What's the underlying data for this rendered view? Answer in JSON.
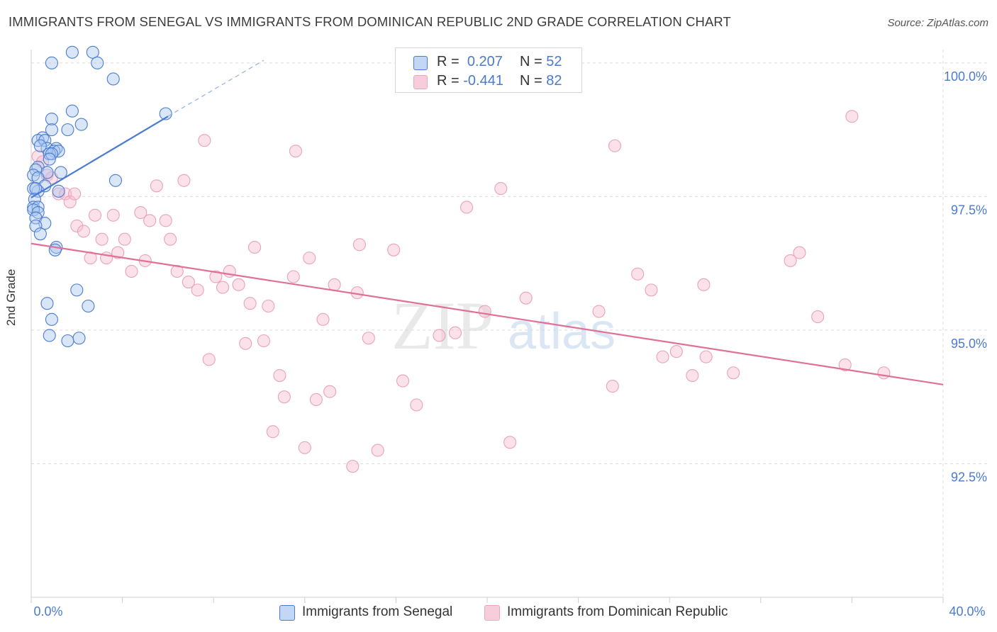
{
  "title": "IMMIGRANTS FROM SENEGAL VS IMMIGRANTS FROM DOMINICAN REPUBLIC 2ND GRADE CORRELATION CHART",
  "source": "Source: ZipAtlas.com",
  "watermark": {
    "zip": "ZIP",
    "atlas": "atlas"
  },
  "colors": {
    "blue": "#4a7bd0",
    "blue_fill": "#aac8f0",
    "pink": "#e07098",
    "pink_fill": "#f6bdd0",
    "axis_text": "#4a7bd0",
    "grid": "#dcdcdc"
  },
  "legend": {
    "rows": [
      {
        "r_label": "R =",
        "r_value": "0.207",
        "n_label": "N =",
        "n_value": "52"
      },
      {
        "r_label": "R =",
        "r_value": "-0.441",
        "n_label": "N =",
        "n_value": "82"
      }
    ]
  },
  "bottom_legend": {
    "senegal": "Immigrants from Senegal",
    "dominican": "Immigrants from Dominican Republic"
  },
  "chart_data": {
    "type": "scatter",
    "title": "IMMIGRANTS FROM SENEGAL VS IMMIGRANTS FROM DOMINICAN REPUBLIC 2ND GRADE CORRELATION CHART",
    "xlabel": "",
    "ylabel": "2nd Grade",
    "xlim": [
      0,
      40
    ],
    "ylim": [
      90.0,
      100.25
    ],
    "x_tick_labels": [
      "0.0%",
      "40.0%"
    ],
    "y_ticks": [
      92.5,
      95.0,
      97.5,
      100.0
    ],
    "y_tick_labels": [
      "92.5%",
      "95.0%",
      "97.5%",
      "100.0%"
    ],
    "grid": true,
    "legend_position": "top-center",
    "series": [
      {
        "name": "Immigrants from Senegal",
        "color": "#4a7bd0",
        "points": [
          [
            0.9,
            100.0
          ],
          [
            1.8,
            100.2
          ],
          [
            2.7,
            100.2
          ],
          [
            2.9,
            100.0
          ],
          [
            3.6,
            99.7
          ],
          [
            1.8,
            99.1
          ],
          [
            0.9,
            98.95
          ],
          [
            2.2,
            98.85
          ],
          [
            5.9,
            99.05
          ],
          [
            1.6,
            98.75
          ],
          [
            0.9,
            98.75
          ],
          [
            0.5,
            98.6
          ],
          [
            0.3,
            98.55
          ],
          [
            0.6,
            98.55
          ],
          [
            0.7,
            98.4
          ],
          [
            0.4,
            98.45
          ],
          [
            1.1,
            98.4
          ],
          [
            1.0,
            98.35
          ],
          [
            1.2,
            98.35
          ],
          [
            0.8,
            98.3
          ],
          [
            0.9,
            98.3
          ],
          [
            0.8,
            98.2
          ],
          [
            0.3,
            98.05
          ],
          [
            0.2,
            98.0
          ],
          [
            1.3,
            97.95
          ],
          [
            0.7,
            97.95
          ],
          [
            0.1,
            97.9
          ],
          [
            0.3,
            97.85
          ],
          [
            3.7,
            97.8
          ],
          [
            0.6,
            97.7
          ],
          [
            0.3,
            97.6
          ],
          [
            0.1,
            97.65
          ],
          [
            0.2,
            97.65
          ],
          [
            1.2,
            97.6
          ],
          [
            0.15,
            97.45
          ],
          [
            0.1,
            97.3
          ],
          [
            0.3,
            97.3
          ],
          [
            0.1,
            97.25
          ],
          [
            0.3,
            97.2
          ],
          [
            0.2,
            97.1
          ],
          [
            0.6,
            97.0
          ],
          [
            0.2,
            96.95
          ],
          [
            0.4,
            96.8
          ],
          [
            1.1,
            96.55
          ],
          [
            1.05,
            96.5
          ],
          [
            2.0,
            95.75
          ],
          [
            0.7,
            95.5
          ],
          [
            2.5,
            95.45
          ],
          [
            0.9,
            95.2
          ],
          [
            0.8,
            94.9
          ],
          [
            2.1,
            94.85
          ],
          [
            1.6,
            94.8
          ]
        ],
        "trend": {
          "x": [
            0.0,
            6.0
          ],
          "y": [
            97.48,
            99.0
          ],
          "extension_x": [
            6.0,
            10.2
          ],
          "extension_y": [
            99.0,
            100.05
          ]
        }
      },
      {
        "name": "Immigrants from Dominican Republic",
        "color": "#e07098",
        "points": [
          [
            0.3,
            98.25
          ],
          [
            0.5,
            98.15
          ],
          [
            0.7,
            97.9
          ],
          [
            0.9,
            97.85
          ],
          [
            1.2,
            97.55
          ],
          [
            1.5,
            97.55
          ],
          [
            1.7,
            97.4
          ],
          [
            1.9,
            97.55
          ],
          [
            2.0,
            96.95
          ],
          [
            2.3,
            96.85
          ],
          [
            2.6,
            96.35
          ],
          [
            2.8,
            97.15
          ],
          [
            3.1,
            96.7
          ],
          [
            3.3,
            96.35
          ],
          [
            3.6,
            97.15
          ],
          [
            3.8,
            96.45
          ],
          [
            4.1,
            96.7
          ],
          [
            4.4,
            96.1
          ],
          [
            4.8,
            97.2
          ],
          [
            5.0,
            96.3
          ],
          [
            5.2,
            97.05
          ],
          [
            5.5,
            97.7
          ],
          [
            5.9,
            97.05
          ],
          [
            6.1,
            96.7
          ],
          [
            6.4,
            96.1
          ],
          [
            6.7,
            97.8
          ],
          [
            6.9,
            95.9
          ],
          [
            7.3,
            95.75
          ],
          [
            7.6,
            98.55
          ],
          [
            7.8,
            94.45
          ],
          [
            8.1,
            96.0
          ],
          [
            8.4,
            95.8
          ],
          [
            8.7,
            96.1
          ],
          [
            9.1,
            95.85
          ],
          [
            9.4,
            94.75
          ],
          [
            9.6,
            95.5
          ],
          [
            9.8,
            96.55
          ],
          [
            10.2,
            94.8
          ],
          [
            10.4,
            95.45
          ],
          [
            10.6,
            93.1
          ],
          [
            10.9,
            94.15
          ],
          [
            11.1,
            93.75
          ],
          [
            11.5,
            96.0
          ],
          [
            11.6,
            98.35
          ],
          [
            12.0,
            92.8
          ],
          [
            12.2,
            96.35
          ],
          [
            12.5,
            93.7
          ],
          [
            12.8,
            95.2
          ],
          [
            13.1,
            93.85
          ],
          [
            13.3,
            95.85
          ],
          [
            14.1,
            92.45
          ],
          [
            14.3,
            95.7
          ],
          [
            14.4,
            96.6
          ],
          [
            14.8,
            94.85
          ],
          [
            15.2,
            92.75
          ],
          [
            15.9,
            96.5
          ],
          [
            16.3,
            94.05
          ],
          [
            16.9,
            93.6
          ],
          [
            17.9,
            94.9
          ],
          [
            18.6,
            94.95
          ],
          [
            19.1,
            97.3
          ],
          [
            19.9,
            95.35
          ],
          [
            20.6,
            97.65
          ],
          [
            21.0,
            92.9
          ],
          [
            21.7,
            95.6
          ],
          [
            24.9,
            95.35
          ],
          [
            25.6,
            98.45
          ],
          [
            25.5,
            93.95
          ],
          [
            26.6,
            96.05
          ],
          [
            27.2,
            95.75
          ],
          [
            27.7,
            94.5
          ],
          [
            28.3,
            94.6
          ],
          [
            29.0,
            94.15
          ],
          [
            29.5,
            95.85
          ],
          [
            29.6,
            94.5
          ],
          [
            30.8,
            94.2
          ],
          [
            33.3,
            96.3
          ],
          [
            33.7,
            96.45
          ],
          [
            34.5,
            95.25
          ],
          [
            35.7,
            94.35
          ],
          [
            37.4,
            94.2
          ],
          [
            36.0,
            99.0
          ]
        ],
        "trend": {
          "x": [
            0.0,
            40.0
          ],
          "y": [
            96.62,
            93.98
          ]
        }
      }
    ]
  }
}
